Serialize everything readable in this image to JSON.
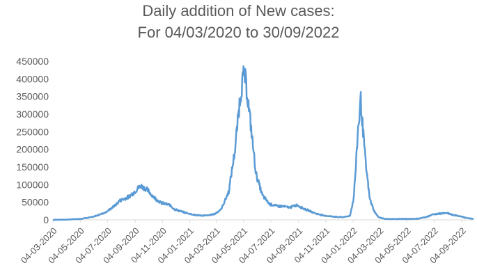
{
  "chart_data": {
    "type": "line",
    "title": "Daily addition of New cases:",
    "subtitle": "For 04/03/2020 to 30/09/2022",
    "xlabel": "",
    "ylabel": "",
    "ylim": [
      0,
      450000
    ],
    "yticks": [
      "0",
      "50000",
      "100000",
      "150000",
      "200000",
      "250000",
      "300000",
      "350000",
      "400000",
      "450000"
    ],
    "xticks": [
      "04-03-2020",
      "04-05-2020",
      "04-07-2020",
      "04-09-2020",
      "04-11-2020",
      "04-01-2021",
      "04-03-2021",
      "04-05-2021",
      "04-07-2021",
      "04-09-2021",
      "04-11-2021",
      "04-01-2022",
      "04-03-2022",
      "04-05-2022",
      "04-07-2022",
      "04-09-2022"
    ],
    "xlim": [
      "2020-03-04",
      "2022-09-30"
    ],
    "grid": false,
    "legend": "none",
    "color": "#5b9bd5",
    "series": [
      {
        "x": [
          "2020-03-04",
          "2020-04-01",
          "2020-05-01",
          "2020-06-01",
          "2020-07-01",
          "2020-07-20",
          "2020-08-01",
          "2020-08-20",
          "2020-09-01",
          "2020-09-16",
          "2020-10-01",
          "2020-10-15",
          "2020-11-01",
          "2020-11-20",
          "2020-12-01",
          "2020-12-20",
          "2021-01-01",
          "2021-01-15",
          "2021-02-01",
          "2021-02-15",
          "2021-03-01",
          "2021-03-15",
          "2021-04-01",
          "2021-04-15",
          "2021-04-25",
          "2021-05-01",
          "2021-05-06",
          "2021-05-12",
          "2021-05-20",
          "2021-06-01",
          "2021-06-15",
          "2021-07-01",
          "2021-07-15",
          "2021-08-01",
          "2021-08-15",
          "2021-09-01",
          "2021-09-15",
          "2021-10-01",
          "2021-10-15",
          "2021-11-01",
          "2021-11-15",
          "2021-12-01",
          "2021-12-15",
          "2021-12-28",
          "2022-01-05",
          "2022-01-10",
          "2022-01-15",
          "2022-01-18",
          "2022-01-21",
          "2022-01-25",
          "2022-02-01",
          "2022-02-10",
          "2022-02-20",
          "2022-03-01",
          "2022-03-15",
          "2022-04-01",
          "2022-04-15",
          "2022-05-01",
          "2022-05-15",
          "2022-06-01",
          "2022-06-15",
          "2022-07-01",
          "2022-07-15",
          "2022-08-01",
          "2022-08-15",
          "2022-09-01",
          "2022-09-15",
          "2022-09-30"
        ],
        "values": [
          30,
          500,
          2500,
          8000,
          22000,
          40000,
          55000,
          65000,
          78000,
          97000,
          85000,
          65000,
          48000,
          42000,
          30000,
          22000,
          18000,
          14000,
          12000,
          13000,
          17000,
          30000,
          80000,
          200000,
          330000,
          390000,
          415000,
          360000,
          270000,
          130000,
          70000,
          45000,
          40000,
          38000,
          35000,
          42000,
          32000,
          24000,
          17000,
          12000,
          10000,
          8000,
          8000,
          12000,
          60000,
          150000,
          260000,
          295000,
          340000,
          270000,
          160000,
          60000,
          25000,
          8000,
          3000,
          2000,
          2500,
          3000,
          2500,
          4000,
          8000,
          15000,
          18000,
          20000,
          14000,
          10000,
          5000,
          3000
        ]
      }
    ]
  }
}
